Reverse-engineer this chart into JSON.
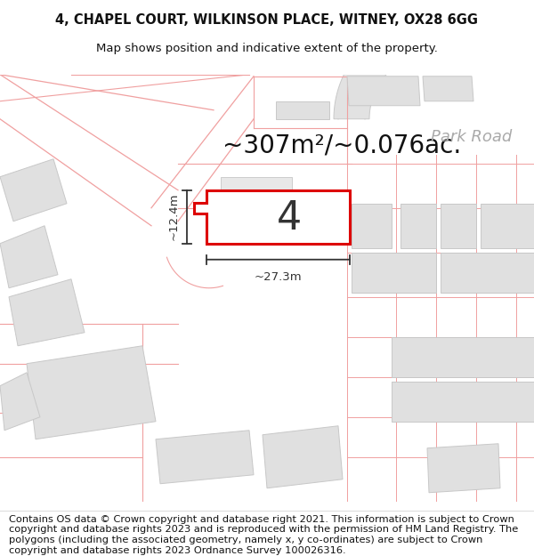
{
  "title": "4, CHAPEL COURT, WILKINSON PLACE, WITNEY, OX28 6GG",
  "subtitle": "Map shows position and indicative extent of the property.",
  "area_text": "~307m²/~0.076ac.",
  "width_label": "~27.3m",
  "height_label": "~12.4m",
  "plot_number": "4",
  "park_road_label": "Park Road",
  "copyright_text": "Contains OS data © Crown copyright and database right 2021. This information is subject to Crown copyright and database rights 2023 and is reproduced with the permission of HM Land Registry. The polygons (including the associated geometry, namely x, y co-ordinates) are subject to Crown copyright and database rights 2023 Ordnance Survey 100026316.",
  "map_bg": "#f7f7f7",
  "plot_fill": "#ffffff",
  "plot_edge": "#dd0000",
  "road_line": "#f0a0a0",
  "block_fill": "#e0e0e0",
  "block_edge": "#c8c8c8",
  "dim_color": "#333333",
  "park_road_color": "#aaaaaa",
  "title_fontsize": 10.5,
  "subtitle_fontsize": 9.5,
  "area_fontsize": 20,
  "label_fontsize": 9.5,
  "park_road_fontsize": 13,
  "copyright_fontsize": 8.2,
  "plot_number_fontsize": 32
}
